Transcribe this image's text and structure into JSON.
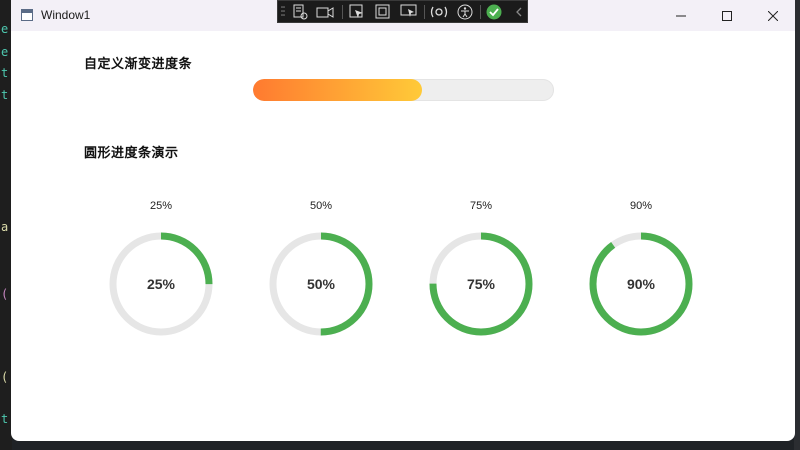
{
  "window": {
    "title": "Window1"
  },
  "debug_toolbar": {
    "icons": [
      "grip-icon",
      "select-element-icon",
      "video-icon",
      "pointer-icon",
      "frame-icon",
      "screen-select-icon",
      "hot-reload-icon",
      "accessibility-icon",
      "check-circle-icon",
      "collapse-chevron-icon"
    ]
  },
  "gradient_section": {
    "label": "自定义渐变进度条",
    "progress": 0.56,
    "gradient_start": "#ff7a30",
    "gradient_end": "#ffca38",
    "track_color": "#eeeeee"
  },
  "ring_section": {
    "label": "圆形进度条演示",
    "ring_color": "#4caf50",
    "track_color": "#e6e6e6",
    "rings": [
      {
        "top_label": "25%",
        "center_label": "25%",
        "value": 0.25
      },
      {
        "top_label": "50%",
        "center_label": "50%",
        "value": 0.5
      },
      {
        "top_label": "75%",
        "center_label": "75%",
        "value": 0.75
      },
      {
        "top_label": "90%",
        "center_label": "90%",
        "value": 0.9
      }
    ]
  }
}
